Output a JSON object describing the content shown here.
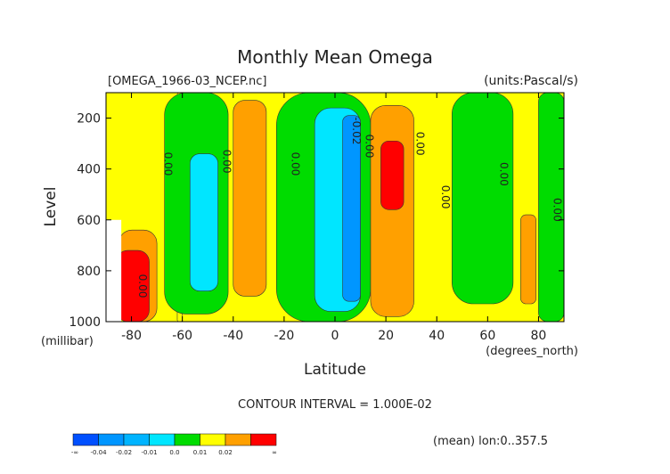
{
  "chart_data": {
    "type": "heatmap",
    "title": "Monthly Mean Omega",
    "file_label": "[OMEGA_1966-03_NCEP.nc]",
    "units_label": "(units:Pascal/s)",
    "xlabel": "Latitude",
    "x_units": "(degrees_north)",
    "ylabel": "Level",
    "y_units": "(millibar)",
    "xlim": [
      -90,
      90
    ],
    "ylim": [
      1000,
      100
    ],
    "x_ticks": [
      -80,
      -60,
      -40,
      -20,
      0,
      20,
      40,
      60,
      80
    ],
    "x_tick_labels": [
      "-80",
      "-60",
      "-40",
      "-20",
      "0",
      "20",
      "40",
      "60",
      "80"
    ],
    "y_ticks": [
      200,
      400,
      600,
      800,
      1000
    ],
    "y_tick_labels": [
      "200",
      "400",
      "600",
      "800",
      "1000"
    ],
    "contour_interval_text": "CONTOUR INTERVAL = 1.000E-02",
    "footer_text": "(mean) lon:0..357.5",
    "contour_labels": [
      {
        "text": "0.00",
        "lat": -67,
        "level": 380
      },
      {
        "text": "0.00",
        "lat": -44,
        "level": 370
      },
      {
        "text": "0.00",
        "lat": -17,
        "level": 380
      },
      {
        "text": "0.00",
        "lat": 12,
        "level": 310
      },
      {
        "text": "-0.02",
        "lat": 7,
        "level": 250
      },
      {
        "text": "0.00",
        "lat": 32,
        "level": 300
      },
      {
        "text": "0.00",
        "lat": 42,
        "level": 510
      },
      {
        "text": "0.00",
        "lat": 65,
        "level": 420
      },
      {
        "text": "0.00",
        "lat": 86,
        "level": 560
      },
      {
        "text": "0.00",
        "lat": -77,
        "level": 860
      }
    ],
    "regions": [
      {
        "band": "0.0 to 0.01",
        "color": "#ffff00",
        "lat": [
          -90,
          90
        ],
        "level": [
          100,
          1000
        ]
      },
      {
        "band": "0.0 to 0.01",
        "color": "#ffff00",
        "lat": [
          -62,
          -60
        ],
        "level": [
          100,
          1000
        ]
      },
      {
        "band": "-0.01 to 0.0",
        "color": "#00dc00",
        "lat": [
          -67,
          -42
        ],
        "level": [
          100,
          970
        ]
      },
      {
        "band": "-0.01 to 0.0",
        "color": "#00dc00",
        "lat": [
          -23,
          14
        ],
        "level": [
          100,
          1000
        ]
      },
      {
        "band": "-0.01 to 0.0",
        "color": "#00dc00",
        "lat": [
          46,
          70
        ],
        "level": [
          100,
          930
        ]
      },
      {
        "band": "-0.01 to 0.0",
        "color": "#00dc00",
        "lat": [
          80,
          90
        ],
        "level": [
          100,
          1000
        ]
      },
      {
        "band": "-0.02 to -0.01",
        "color": "#00e6ff",
        "lat": [
          -57,
          -46
        ],
        "level": [
          340,
          880
        ]
      },
      {
        "band": "-0.02 to -0.01",
        "color": "#00e6ff",
        "lat": [
          -8,
          10
        ],
        "level": [
          160,
          960
        ]
      },
      {
        "band": "-0.04 to -0.02",
        "color": "#0096ff",
        "lat": [
          3,
          10
        ],
        "level": [
          190,
          920
        ]
      },
      {
        "band": "0.01 to 0.02",
        "color": "#ffa000",
        "lat": [
          -40,
          -27
        ],
        "level": [
          130,
          900
        ]
      },
      {
        "band": "0.01 to 0.02",
        "color": "#ffa000",
        "lat": [
          14,
          31
        ],
        "level": [
          150,
          980
        ]
      },
      {
        "band": "0.01 to 0.02",
        "color": "#ffa000",
        "lat": [
          73,
          79
        ],
        "level": [
          580,
          930
        ]
      },
      {
        "band": "0.01 to 0.02",
        "color": "#ffa000",
        "lat": [
          -85,
          -70
        ],
        "level": [
          640,
          1000
        ]
      },
      {
        "band": "> 0.02",
        "color": "#ff0000",
        "lat": [
          18,
          27
        ],
        "level": [
          290,
          560
        ]
      },
      {
        "band": "> 0.02",
        "color": "#ff0000",
        "lat": [
          -86,
          -73
        ],
        "level": [
          720,
          1000
        ]
      }
    ],
    "missing_data_region": {
      "lat": [
        -90,
        -84
      ],
      "level": [
        600,
        1000
      ],
      "color": "#ffffff"
    },
    "colorbar": {
      "colors": [
        "#0050ff",
        "#0096ff",
        "#00b4ff",
        "#00e6ff",
        "#00dc00",
        "#ffff00",
        "#ffa000",
        "#ff0000"
      ],
      "tick_labels": [
        "-∞",
        "-0.04",
        "-0.02",
        "-0.01",
        "0.0",
        "0.01",
        "0.02",
        "∞"
      ]
    }
  }
}
